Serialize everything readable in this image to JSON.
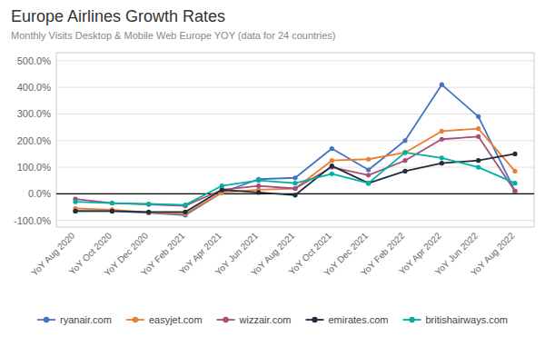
{
  "chart_data": {
    "type": "line",
    "title": "Europe Airlines Growth Rates",
    "subtitle": "Monthly Visits Desktop & Mobile Web Europe YOY (data for 24 countries)",
    "categories": [
      "YoY Aug 2020",
      "YoY Oct 2020",
      "YoY Dec 2020",
      "YoY Feb 2021",
      "YoY Apr 2021",
      "YoY Jun 2021",
      "YoY Aug 2021",
      "YoY Oct 2021",
      "YoY Dec 2021",
      "YoY Feb 2022",
      "YoY Apr 2022",
      "YoY Jun 2022",
      "YoY Aug 2022"
    ],
    "series": [
      {
        "name": "ryanair.com",
        "color": "#4472C4",
        "marker": "circle",
        "values": [
          -65,
          -65,
          -72,
          -80,
          5,
          55,
          60,
          170,
          90,
          200,
          410,
          290,
          10
        ]
      },
      {
        "name": "easyjet.com",
        "color": "#ED7D31",
        "marker": "circle",
        "values": [
          -55,
          -60,
          -70,
          -75,
          5,
          15,
          20,
          125,
          130,
          155,
          235,
          245,
          85
        ]
      },
      {
        "name": "wizzair.com",
        "color": "#A64D79",
        "marker": "circle",
        "values": [
          -20,
          -35,
          -40,
          -45,
          15,
          30,
          20,
          100,
          70,
          125,
          205,
          215,
          10
        ]
      },
      {
        "name": "emirates.com",
        "color": "#1F2D3D",
        "marker": "circle",
        "values": [
          -65,
          -65,
          -68,
          -68,
          15,
          5,
          -5,
          105,
          40,
          85,
          115,
          125,
          150
        ]
      },
      {
        "name": "britishairways.com",
        "color": "#00B0A0",
        "marker": "circle",
        "values": [
          -30,
          -35,
          -38,
          -42,
          30,
          50,
          40,
          75,
          40,
          155,
          135,
          100,
          40
        ]
      }
    ],
    "ylim": [
      -125,
      530
    ],
    "yticks": [
      {
        "value": -100,
        "label": "-100.0%"
      },
      {
        "value": 0,
        "label": "0.0%"
      },
      {
        "value": 100,
        "label": "100.0%"
      },
      {
        "value": 200,
        "label": "200.0%"
      },
      {
        "value": 300,
        "label": "300.0%"
      },
      {
        "value": 400,
        "label": "400.0%"
      },
      {
        "value": 500,
        "label": "500.0%"
      }
    ],
    "grid": true,
    "legend": "bottom"
  }
}
